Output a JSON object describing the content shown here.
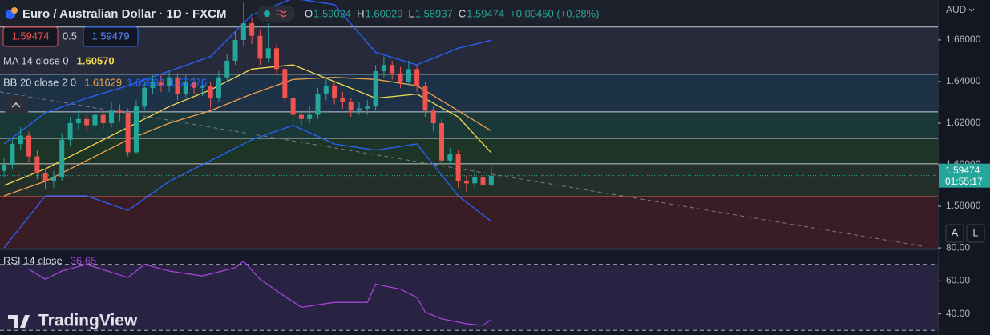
{
  "chart_data": {
    "type": "candlestick",
    "title": "Euro / Australian Dollar · 1D · FXCM",
    "ohlc_legend": [
      {
        "key": "O",
        "value": "1.59024"
      },
      {
        "key": "H",
        "value": "1.60029"
      },
      {
        "key": "L",
        "value": "1.58937"
      },
      {
        "key": "C",
        "value": "1.59474"
      }
    ],
    "change": "+0.00450 (+0.28%)",
    "sell": "1.59474",
    "spread": "0.5",
    "buy": "1.59479",
    "currency": "AUD",
    "last_price": {
      "value": 1.59474,
      "label": "1.59474"
    },
    "countdown": "01:55:17",
    "scale_buttons": [
      "A",
      "L"
    ],
    "brand": "TradingView",
    "xlim": [
      -0.5,
      113.1
    ],
    "ylim": [
      1.56,
      1.6792
    ],
    "yticks": [
      {
        "value": 1.66,
        "label": "1.66000"
      },
      {
        "value": 1.64,
        "label": "1.64000"
      },
      {
        "value": 1.62,
        "label": "1.62000"
      },
      {
        "value": 1.6,
        "label": "1.60000"
      },
      {
        "value": 1.58,
        "label": "1.58000"
      }
    ],
    "up_color": "#26a69a",
    "down_color": "#ef5350",
    "open": [
      1.597,
      1.6,
      1.61,
      1.614,
      1.604,
      1.596,
      1.592,
      1.594,
      1.612,
      1.62,
      1.622,
      1.619,
      1.624,
      1.62,
      1.626,
      1.625,
      1.606,
      1.628,
      1.637,
      1.64,
      1.638,
      1.642,
      1.634,
      1.64,
      1.637,
      1.638,
      1.632,
      1.642,
      1.65,
      1.66,
      1.668,
      1.662,
      1.651,
      1.656,
      1.646,
      1.632,
      1.624,
      1.622,
      1.624,
      1.634,
      1.638,
      1.632,
      1.63,
      1.626,
      1.627,
      1.628,
      1.645,
      1.648,
      1.644,
      1.64,
      1.646,
      1.638,
      1.626,
      1.62,
      1.602,
      1.605,
      1.592,
      1.591,
      1.594,
      1.59024
    ],
    "high": [
      1.603,
      1.613,
      1.618,
      1.616,
      1.607,
      1.598,
      1.597,
      1.615,
      1.623,
      1.626,
      1.624,
      1.627,
      1.626,
      1.63,
      1.629,
      1.627,
      1.631,
      1.64,
      1.643,
      1.643,
      1.645,
      1.644,
      1.643,
      1.642,
      1.641,
      1.64,
      1.645,
      1.653,
      1.664,
      1.678,
      1.671,
      1.665,
      1.668,
      1.658,
      1.648,
      1.635,
      1.626,
      1.628,
      1.637,
      1.641,
      1.64,
      1.635,
      1.632,
      1.63,
      1.631,
      1.648,
      1.652,
      1.65,
      1.647,
      1.65,
      1.648,
      1.64,
      1.628,
      1.622,
      1.608,
      1.607,
      1.595,
      1.598,
      1.597,
      1.60029
    ],
    "low": [
      1.594,
      1.598,
      1.607,
      1.601,
      1.593,
      1.588,
      1.589,
      1.592,
      1.609,
      1.617,
      1.616,
      1.617,
      1.617,
      1.618,
      1.621,
      1.604,
      1.605,
      1.626,
      1.634,
      1.635,
      1.635,
      1.631,
      1.632,
      1.634,
      1.633,
      1.627,
      1.63,
      1.64,
      1.648,
      1.657,
      1.658,
      1.648,
      1.649,
      1.643,
      1.629,
      1.62,
      1.619,
      1.62,
      1.622,
      1.631,
      1.629,
      1.627,
      1.623,
      1.624,
      1.624,
      1.626,
      1.642,
      1.641,
      1.637,
      1.638,
      1.635,
      1.623,
      1.616,
      1.6,
      1.6,
      1.589,
      1.587,
      1.588,
      1.587,
      1.58937
    ],
    "close": [
      1.6,
      1.61,
      1.614,
      1.604,
      1.596,
      1.592,
      1.594,
      1.612,
      1.62,
      1.622,
      1.619,
      1.624,
      1.62,
      1.626,
      1.625,
      1.606,
      1.628,
      1.637,
      1.64,
      1.638,
      1.642,
      1.634,
      1.64,
      1.637,
      1.638,
      1.632,
      1.642,
      1.65,
      1.66,
      1.668,
      1.662,
      1.651,
      1.656,
      1.646,
      1.632,
      1.624,
      1.622,
      1.624,
      1.634,
      1.638,
      1.632,
      1.63,
      1.626,
      1.627,
      1.628,
      1.645,
      1.648,
      1.644,
      1.64,
      1.646,
      1.638,
      1.626,
      1.62,
      1.602,
      1.605,
      1.592,
      1.591,
      1.594,
      1.59024,
      1.59474
    ],
    "levels": [
      {
        "value": 1.6662,
        "line": "#c8cbd2",
        "fill": "#262a3a"
      },
      {
        "value": 1.6435,
        "line": "#c8cbd2",
        "fill": "#1d3147"
      },
      {
        "value": 1.6254,
        "line": "#c8cbd2",
        "fill": "#1b3838"
      },
      {
        "value": 1.6127,
        "line": "#c8cbd2",
        "fill": "#1d3526"
      },
      {
        "value": 1.6004,
        "line": "#c8cbd2",
        "fill": "#233029"
      },
      {
        "value": 1.5846,
        "line": "#ef5350",
        "fill": "#3a1c25"
      }
    ],
    "background": "#1d212c",
    "trendline": {
      "x": [
        -0.5,
        111.2
      ],
      "values": [
        1.635,
        1.5608
      ],
      "color": "#787b86"
    },
    "ma": {
      "label": "MA 14 close 0",
      "value_label": "1.60570",
      "color": "#f2d94e",
      "x": [
        0,
        5,
        10,
        15,
        20,
        25,
        30,
        35,
        40,
        45,
        50,
        55,
        59
      ],
      "values": [
        1.59,
        1.598,
        1.608,
        1.618,
        1.628,
        1.636,
        1.646,
        1.648,
        1.64,
        1.632,
        1.634,
        1.623,
        1.6057
      ]
    },
    "bb": {
      "label": "BB 20 close 2 0",
      "x": [
        0,
        5,
        10,
        15,
        20,
        25,
        30,
        35,
        40,
        45,
        50,
        55,
        59
      ],
      "basis": {
        "color": "#f0a04b",
        "value_label": "1.61629",
        "values": [
          1.585,
          1.592,
          1.602,
          1.612,
          1.62,
          1.626,
          1.634,
          1.641,
          1.642,
          1.641,
          1.638,
          1.626,
          1.61629
        ]
      },
      "upper": {
        "color": "#2962ff",
        "value_label": "1.65983",
        "values": [
          1.61,
          1.625,
          1.632,
          1.638,
          1.645,
          1.652,
          1.672,
          1.68,
          1.677,
          1.654,
          1.648,
          1.656,
          1.65983
        ]
      },
      "lower": {
        "color": "#2962ff",
        "value_label": "1.57276",
        "values": [
          1.56,
          1.585,
          1.585,
          1.578,
          1.592,
          1.602,
          1.612,
          1.619,
          1.61,
          1.607,
          1.61,
          1.585,
          1.57276
        ]
      }
    },
    "rsi": {
      "label": "RSI 14 close",
      "value_label": "36.65",
      "color": "#a443d6",
      "x": [
        3,
        5,
        7,
        10,
        15,
        17,
        20,
        24,
        28,
        29,
        31,
        33,
        36,
        40,
        44,
        45,
        48,
        50,
        51,
        53,
        56,
        58,
        59
      ],
      "values": [
        67,
        61,
        66,
        70,
        62,
        70,
        66,
        63,
        68,
        72,
        61,
        54,
        44,
        47,
        47,
        58,
        55,
        50,
        41,
        37,
        34,
        33,
        36.65
      ],
      "ylim": [
        27.2,
        78.6
      ],
      "yticks": [
        {
          "value": 80,
          "label": "80.00"
        },
        {
          "value": 60,
          "label": "60.00"
        },
        {
          "value": 40,
          "label": "40.00"
        }
      ],
      "bands": [
        30,
        70
      ]
    }
  }
}
